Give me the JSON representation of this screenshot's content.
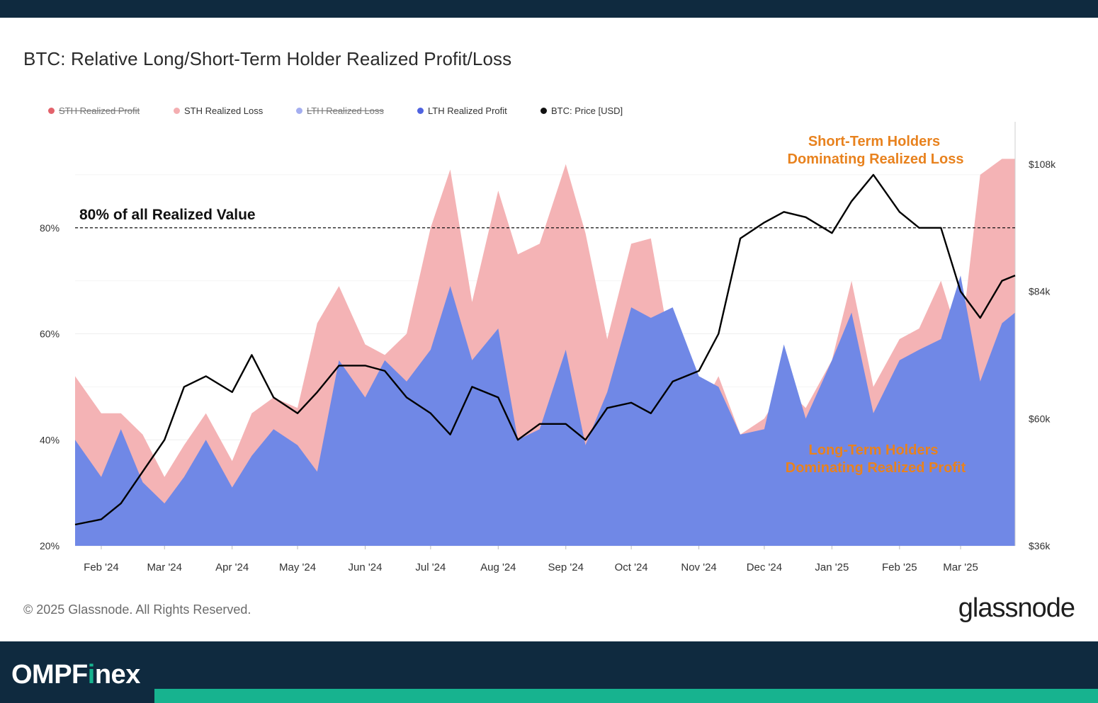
{
  "header": {
    "title": "BTC: Relative Long/Short-Term Holder Realized Profit/Loss"
  },
  "legend": [
    {
      "label": "STH Realized Profit",
      "color": "#e0515b",
      "disabled": true
    },
    {
      "label": "STH Realized Loss",
      "color": "#f4aeb1",
      "disabled": false
    },
    {
      "label": "LTH Realized Loss",
      "color": "#9aa5ee",
      "disabled": true
    },
    {
      "label": "LTH Realized Profit",
      "color": "#4f63e0",
      "disabled": false
    },
    {
      "label": "BTC: Price [USD]",
      "color": "#111111",
      "disabled": false
    }
  ],
  "footer": {
    "copyright": "© 2025 Glassnode. All Rights Reserved.",
    "brand": "glassnode",
    "site_logo_prefix": "OMPF",
    "site_logo_i": "i",
    "site_logo_suffix": "nex"
  },
  "colors": {
    "sth_loss_fill": "#f4b3b5",
    "lth_profit_fill": "#7088e6",
    "price_line": "#000000",
    "annotation_orange": "#e8821e",
    "grid": "#eeeeee"
  },
  "chart_data": {
    "type": "area",
    "title": "BTC: Relative Long/Short-Term Holder Realized Profit/Loss",
    "x": [
      "Jan 20 '24",
      "Feb 1 '24",
      "Feb 10 '24",
      "Feb 20 '24",
      "Mar 1 '24",
      "Mar 10 '24",
      "Mar 20 '24",
      "Apr 1 '24",
      "Apr 10 '24",
      "Apr 20 '24",
      "May 1 '24",
      "May 10 '24",
      "May 20 '24",
      "Jun 1 '24",
      "Jun 10 '24",
      "Jun 20 '24",
      "Jul 1 '24",
      "Jul 10 '24",
      "Jul 20 '24",
      "Aug 1 '24",
      "Aug 10 '24",
      "Aug 20 '24",
      "Sep 1 '24",
      "Sep 10 '24",
      "Sep 20 '24",
      "Oct 1 '24",
      "Oct 10 '24",
      "Oct 20 '24",
      "Nov 1 '24",
      "Nov 10 '24",
      "Nov 20 '24",
      "Dec 1 '24",
      "Dec 10 '24",
      "Dec 20 '24",
      "Jan 1 '25",
      "Jan 10 '25",
      "Jan 20 '25",
      "Feb 1 '25",
      "Feb 10 '25",
      "Feb 20 '25",
      "Mar 1 '25",
      "Mar 10 '25",
      "Mar 20 '25",
      "Mar 26 '25"
    ],
    "series": [
      {
        "name": "LTH Realized Profit",
        "axis": "left",
        "unit": "%",
        "values": [
          40,
          33,
          42,
          32,
          28,
          33,
          40,
          31,
          37,
          42,
          39,
          34,
          55,
          48,
          55,
          51,
          57,
          69,
          55,
          61,
          40,
          42,
          57,
          39,
          49,
          65,
          63,
          65,
          52,
          50,
          41,
          42,
          58,
          44,
          55,
          64,
          45,
          55,
          57,
          59,
          71,
          51,
          62,
          64
        ]
      },
      {
        "name": "STH Realized Loss",
        "axis": "left",
        "unit": "%",
        "stacked_top": true,
        "values": [
          52,
          45,
          45,
          41,
          33,
          39,
          45,
          36,
          45,
          48,
          46,
          62,
          69,
          58,
          56,
          60,
          80,
          91,
          66,
          87,
          75,
          77,
          92,
          79,
          59,
          77,
          78,
          55,
          45,
          52,
          41,
          44,
          50,
          46,
          55,
          70,
          50,
          59,
          61,
          70,
          58,
          90,
          93,
          93
        ]
      },
      {
        "name": "BTC: Price [USD]",
        "axis": "right",
        "unit": "USD",
        "values": [
          40000,
          41000,
          44000,
          50000,
          56000,
          66000,
          68000,
          65000,
          72000,
          64000,
          61000,
          65000,
          70000,
          70000,
          69000,
          64000,
          61000,
          57000,
          66000,
          64000,
          56000,
          59000,
          59000,
          56000,
          62000,
          63000,
          61000,
          67000,
          69000,
          76000,
          94000,
          97000,
          99000,
          98000,
          95000,
          101000,
          106000,
          99000,
          96000,
          96000,
          84000,
          79000,
          86000,
          87000
        ]
      }
    ],
    "reference_line": {
      "value": 80,
      "label": "80% of all Realized Value",
      "style": "dashed"
    },
    "annotations": [
      {
        "text_line1": "Short-Term Holders",
        "text_line2": "Dominating Realized Loss",
        "position": "top-right"
      },
      {
        "text_line1": "Long-Term Holders",
        "text_line2": "Dominating Realized Profit",
        "position": "bottom-right"
      }
    ],
    "left_axis": {
      "ylim": [
        20,
        100
      ],
      "tick_values": [
        20,
        40,
        60,
        80
      ],
      "tick_labels": [
        "20%",
        "40%",
        "60%",
        "80%"
      ]
    },
    "right_axis": {
      "ylim": [
        36000,
        116000
      ],
      "tick_values": [
        36000,
        60000,
        84000,
        108000
      ],
      "tick_labels": [
        "$36k",
        "$60k",
        "$84k",
        "$108k"
      ]
    },
    "x_ticks": [
      {
        "label": "Feb '24",
        "date": "Feb 1 '24"
      },
      {
        "label": "Mar '24",
        "date": "Mar 1 '24"
      },
      {
        "label": "Apr '24",
        "date": "Apr 1 '24"
      },
      {
        "label": "May '24",
        "date": "May 1 '24"
      },
      {
        "label": "Jun '24",
        "date": "Jun 1 '24"
      },
      {
        "label": "Jul '24",
        "date": "Jul 1 '24"
      },
      {
        "label": "Aug '24",
        "date": "Aug 1 '24"
      },
      {
        "label": "Sep '24",
        "date": "Sep 1 '24"
      },
      {
        "label": "Oct '24",
        "date": "Oct 1 '24"
      },
      {
        "label": "Nov '24",
        "date": "Nov 1 '24"
      },
      {
        "label": "Dec '24",
        "date": "Dec 1 '24"
      },
      {
        "label": "Jan '25",
        "date": "Jan 1 '25"
      },
      {
        "label": "Feb '25",
        "date": "Feb 1 '25"
      },
      {
        "label": "Mar '25",
        "date": "Mar 1 '25"
      }
    ],
    "grid": true,
    "legend_position": "top-left"
  }
}
